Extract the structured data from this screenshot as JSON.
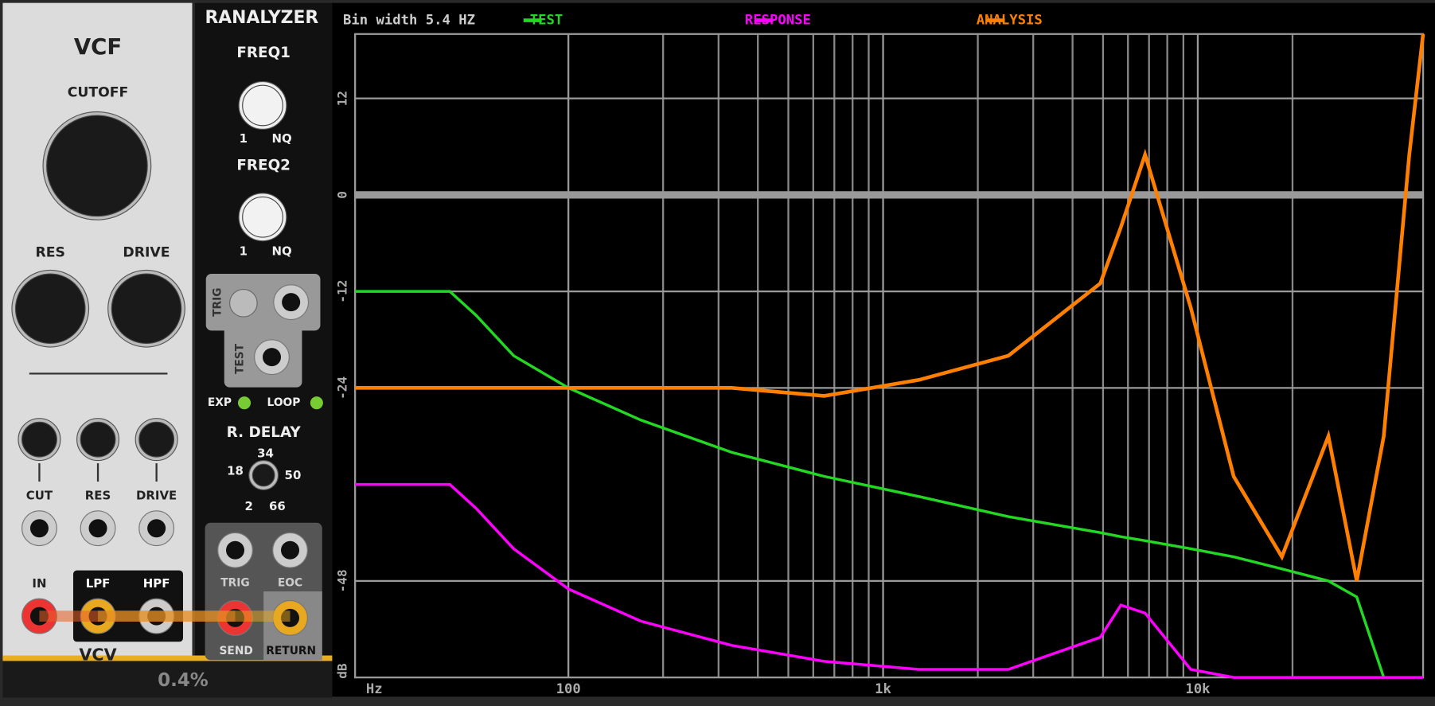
{
  "vcf": {
    "title": "VCF",
    "knobs": [
      "CUTOFF",
      "RES",
      "DRIVE"
    ],
    "cv_labels": [
      "CUT",
      "RES",
      "DRIVE"
    ],
    "jacks": [
      "IN",
      "LPF",
      "HPF"
    ],
    "brand": "VCV"
  },
  "ranalyzer": {
    "title": "RANALYZER",
    "freq1": {
      "label": "FREQ1",
      "min": "1",
      "max": "NQ"
    },
    "freq2": {
      "label": "FREQ2",
      "min": "1",
      "max": "NQ"
    },
    "trig": "TRIG",
    "test": "TEST",
    "exp": "EXP",
    "loop": "LOOP",
    "delay": {
      "label": "R. DELAY",
      "marks": [
        "34",
        "18",
        "50",
        "2",
        "66"
      ]
    },
    "jacks": [
      "TRIG",
      "EOC",
      "SEND",
      "RETURN"
    ]
  },
  "status": {
    "cpu": "0.4%"
  },
  "chart_data": {
    "type": "line",
    "subtitle": "Bin width 5.4 HZ",
    "x_label": "Hz",
    "y_label": "dB",
    "x_log": true,
    "xlim": [
      21,
      52000
    ],
    "xticks": [
      100,
      {
        "value": 1000,
        "label": "1k"
      },
      {
        "value": 10000,
        "label": "10k"
      }
    ],
    "xgrid": [
      200,
      300,
      400,
      500,
      600,
      700,
      800,
      900,
      2000,
      3000,
      4000,
      5000,
      6000,
      7000,
      8000,
      9000,
      20000
    ],
    "ylim": [
      -60,
      20
    ],
    "yticks": [
      12,
      0,
      -12,
      -24,
      -48
    ],
    "grid": true,
    "x": [
      21,
      32,
      42,
      51,
      67,
      100,
      170,
      330,
      650,
      1300,
      2500,
      4900,
      5700,
      6800,
      9500,
      13000,
      18500,
      26000,
      32000,
      39000,
      47000,
      52000
    ],
    "series": [
      {
        "name": "TEST",
        "color": "#22d822",
        "values": [
          -12,
          -12,
          -12,
          -15,
          -20,
          -24,
          -28,
          -32,
          -35,
          -37.5,
          -40,
          -42,
          -42.5,
          -43,
          -44,
          -45,
          -46.5,
          -48,
          -50,
          -60,
          null,
          null
        ]
      },
      {
        "name": "RESPONSE",
        "color": "#ff00ff",
        "values": [
          -36,
          -36,
          -36,
          -39,
          -44,
          -49,
          -53,
          -56,
          -58,
          -59,
          -59,
          -55,
          -51,
          -52,
          -59,
          -60,
          -60,
          -60,
          -60,
          -60,
          -60,
          -60
        ]
      },
      {
        "name": "ANALYSIS",
        "color": "#ff8000",
        "values": [
          -24,
          -24,
          -24,
          -24,
          -24,
          -24,
          -24,
          -24,
          -25,
          -23,
          -20,
          -11,
          -4,
          5,
          -14,
          -35,
          -45,
          -30,
          -48,
          -30,
          5,
          20
        ]
      }
    ]
  }
}
